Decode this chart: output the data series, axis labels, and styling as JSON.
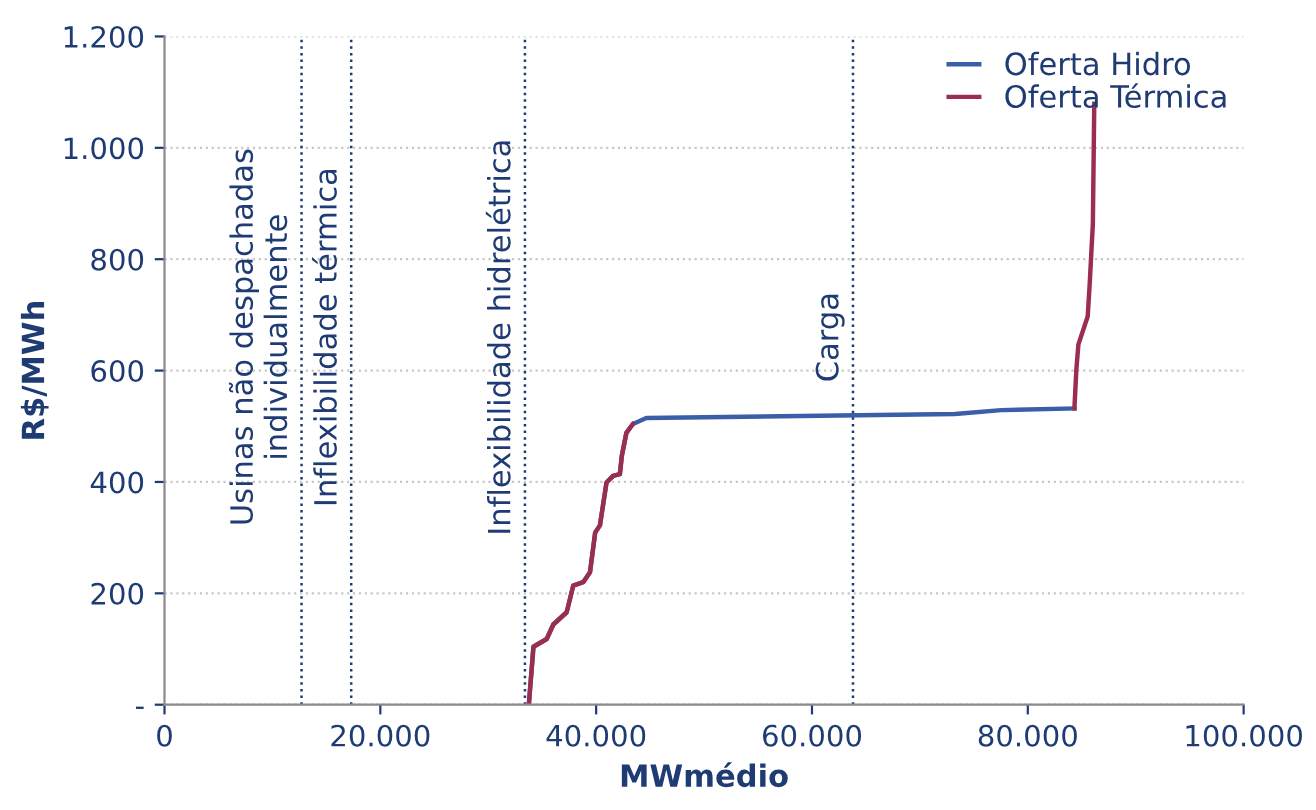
{
  "chart_data": {
    "type": "line",
    "xlabel": "MWmédio",
    "ylabel": "R$/MWh",
    "xlim": [
      0,
      100000
    ],
    "xticks": [
      {
        "value": 0,
        "label": "0"
      },
      {
        "value": 20000,
        "label": "20.000"
      },
      {
        "value": 40000,
        "label": "40.000"
      },
      {
        "value": 60000,
        "label": "60.000"
      },
      {
        "value": 80000,
        "label": "80.000"
      },
      {
        "value": 100000,
        "label": "100.000"
      }
    ],
    "ylim": [
      0,
      1200
    ],
    "yticks": [
      {
        "value": 0,
        "label": "-"
      },
      200,
      400,
      600,
      800,
      {
        "value": 1000,
        "label": "1.000"
      },
      {
        "value": 1200,
        "label": "1.200"
      }
    ],
    "grid": "y",
    "legend": "top right",
    "line_style": "solid",
    "marker": "none",
    "series": [
      {
        "name": "Oferta Hidro",
        "color": "#3b5ea8",
        "x": [
          33760,
          34190,
          35420,
          36030,
          37270,
          37880,
          38800,
          39430,
          39910,
          40350,
          40960,
          41570,
          42200,
          42380,
          42800,
          43410,
          44650,
          73250,
          77550,
          84320
        ],
        "values": [
          0,
          104,
          118,
          144,
          166,
          214,
          220,
          238,
          309,
          322,
          399,
          411,
          414,
          447,
          488,
          504,
          515,
          522,
          529,
          532
        ]
      },
      {
        "name": "Oferta Térmica",
        "color": "#9b2d4f",
        "x": [
          33760,
          34190,
          35420,
          36030,
          37270,
          37880,
          38800,
          39430,
          39910,
          40350,
          40960,
          41570,
          42200,
          42380,
          42800,
          43410,
          44000,
          84320,
          84500,
          84690,
          85550,
          85740,
          86030,
          86160
        ],
        "values": [
          0,
          104,
          118,
          144,
          166,
          214,
          220,
          238,
          309,
          322,
          399,
          411,
          414,
          447,
          488,
          504,
          null,
          532,
          602,
          647,
          697,
          757,
          864,
          1079
        ]
      }
    ],
    "ref_lines": [
      {
        "axis": "x",
        "value": 12700,
        "label": "Usinas não despachadas\nindividualmente",
        "color": "#1f3b73",
        "line_style": "dotted"
      },
      {
        "axis": "x",
        "value": 17300,
        "label": "Inflexibilidade térmica",
        "color": "#1f3b73",
        "line_style": "dotted"
      },
      {
        "axis": "x",
        "value": 33400,
        "label": "Inflexibilidade hidrelétrica",
        "color": "#1f3b73",
        "line_style": "dotted"
      },
      {
        "axis": "x",
        "value": 63800,
        "label": "Carga",
        "color": "#1f3b73",
        "line_style": "dotted"
      }
    ]
  }
}
